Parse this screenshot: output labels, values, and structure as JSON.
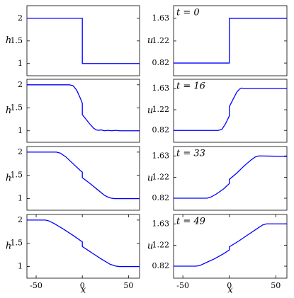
{
  "chart_data": [
    {
      "type": "line",
      "ylabel": "h",
      "color": "#0000ff",
      "xlim": [
        -60,
        62
      ],
      "ylim": [
        0.73,
        2.28
      ],
      "yticks": [
        1,
        1.5,
        2
      ],
      "x": [
        -60,
        0,
        0,
        62
      ],
      "values": [
        2,
        2,
        1,
        1
      ]
    },
    {
      "type": "line",
      "ylabel": "u",
      "annotation": "t = 0",
      "color": "#0000ff",
      "xlim": [
        -60,
        62
      ],
      "ylim": [
        0.59,
        1.86
      ],
      "yticks": [
        0.82,
        1.22,
        1.63
      ],
      "x": [
        -60,
        0,
        0,
        62
      ],
      "values": [
        0.82,
        0.82,
        1.63,
        1.63
      ]
    },
    {
      "type": "line",
      "ylabel": "h",
      "color": "#0000ff",
      "xlim": [
        -60,
        62
      ],
      "ylim": [
        0.75,
        2.12
      ],
      "yticks": [
        1,
        1.5,
        2
      ],
      "x": [
        -60,
        -14,
        -10,
        -6,
        -2,
        0,
        0,
        4,
        8,
        12,
        15,
        18,
        20,
        24,
        28,
        32,
        36,
        40,
        45,
        50,
        55,
        62
      ],
      "values": [
        2,
        2,
        1.98,
        1.88,
        1.7,
        1.6,
        1.35,
        1.25,
        1.15,
        1.06,
        1.02,
        1.01,
        1.02,
        1.0,
        1.01,
        1.0,
        1.01,
        1.0,
        1.0,
        1.0,
        1.0,
        1.0
      ]
    },
    {
      "type": "line",
      "ylabel": "u",
      "annotation": "t = 16",
      "color": "#0000ff",
      "xlim": [
        -60,
        62
      ],
      "ylim": [
        0.59,
        1.81
      ],
      "yticks": [
        0.82,
        1.22,
        1.63
      ],
      "x": [
        -60,
        -12,
        -8,
        -4,
        0,
        0,
        4,
        8,
        11,
        13,
        16,
        62
      ],
      "values": [
        0.82,
        0.82,
        0.84,
        0.95,
        1.1,
        1.28,
        1.42,
        1.56,
        1.62,
        1.64,
        1.63,
        1.63
      ]
    },
    {
      "type": "line",
      "ylabel": "h",
      "color": "#0000ff",
      "xlim": [
        -60,
        62
      ],
      "ylim": [
        0.75,
        2.12
      ],
      "yticks": [
        1,
        1.5,
        2
      ],
      "x": [
        -60,
        -28,
        -24,
        -18,
        -10,
        -2,
        0,
        0,
        8,
        16,
        24,
        28,
        31,
        35,
        62
      ],
      "values": [
        2,
        2,
        1.98,
        1.9,
        1.75,
        1.6,
        1.57,
        1.45,
        1.33,
        1.2,
        1.07,
        1.03,
        1.01,
        1.0,
        1.0
      ]
    },
    {
      "type": "line",
      "ylabel": "u",
      "annotation": "t = 33",
      "color": "#0000ff",
      "xlim": [
        -60,
        62
      ],
      "ylim": [
        0.59,
        1.81
      ],
      "yticks": [
        0.82,
        1.22,
        1.63
      ],
      "x": [
        -60,
        -24,
        -20,
        -14,
        -6,
        0,
        0,
        8,
        16,
        24,
        28,
        32,
        62
      ],
      "values": [
        0.82,
        0.82,
        0.84,
        0.9,
        1.0,
        1.1,
        1.18,
        1.3,
        1.44,
        1.56,
        1.61,
        1.63,
        1.62
      ]
    },
    {
      "type": "line",
      "ylabel": "h",
      "xlabel": "x",
      "color": "#0000ff",
      "xlim": [
        -60,
        62
      ],
      "ylim": [
        0.75,
        2.12
      ],
      "yticks": [
        1,
        1.5,
        2
      ],
      "xticks": [
        -50,
        0,
        50
      ],
      "x": [
        -60,
        -40,
        -36,
        -30,
        -20,
        -10,
        0,
        0,
        10,
        20,
        30,
        36,
        40,
        62
      ],
      "values": [
        2,
        2,
        1.98,
        1.92,
        1.8,
        1.67,
        1.53,
        1.43,
        1.3,
        1.17,
        1.05,
        1.01,
        1.0,
        1.0
      ]
    },
    {
      "type": "line",
      "ylabel": "u",
      "xlabel": "x",
      "annotation": "t = 49",
      "color": "#0000ff",
      "xlim": [
        -60,
        62
      ],
      "ylim": [
        0.59,
        1.81
      ],
      "yticks": [
        0.82,
        1.22,
        1.63
      ],
      "xticks": [
        -50,
        0,
        50
      ],
      "x": [
        -60,
        -36,
        -32,
        -26,
        -16,
        -6,
        0,
        0,
        10,
        20,
        30,
        36,
        40,
        62
      ],
      "values": [
        0.82,
        0.82,
        0.83,
        0.88,
        0.96,
        1.06,
        1.13,
        1.19,
        1.3,
        1.42,
        1.54,
        1.61,
        1.63,
        1.63
      ]
    }
  ]
}
